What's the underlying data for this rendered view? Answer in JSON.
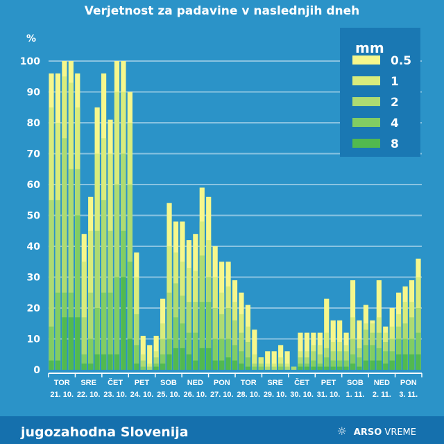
{
  "title": "Verjetnost za padavine v naslednjih dneh",
  "footer": {
    "region": "jugozahodna Slovenija",
    "brand_bold": "ARSO",
    "brand_light": "VREME",
    "brand_icon": "sun-snowflake-icon"
  },
  "colors": {
    "0.5": "#f6f78c",
    "1": "#d9ec7c",
    "2": "#aedb72",
    "4": "#82cd63",
    "8": "#52b94f",
    "background": "#2b93c8",
    "legend_bg": "#1a78b3"
  },
  "chart_data": {
    "type": "bar",
    "stacked": "overlapping-cumulative",
    "ylabel": "%",
    "ylim": [
      0,
      100
    ],
    "yticks": [
      0,
      10,
      20,
      30,
      40,
      50,
      60,
      70,
      80,
      90,
      100
    ],
    "grid": true,
    "legend": {
      "title": "mm",
      "placement": "top-right",
      "entries": [
        "0.5",
        "1",
        "2",
        "4",
        "8"
      ]
    },
    "days": [
      {
        "day": "TOR",
        "date": "21. 10."
      },
      {
        "day": "SRE",
        "date": "22. 10."
      },
      {
        "day": "ČET",
        "date": "23. 10."
      },
      {
        "day": "PET",
        "date": "24. 10."
      },
      {
        "day": "SOB",
        "date": "25. 10."
      },
      {
        "day": "NED",
        "date": "26. 10."
      },
      {
        "day": "PON",
        "date": "27. 10."
      },
      {
        "day": "TOR",
        "date": "28. 10."
      },
      {
        "day": "SRE",
        "date": "29. 10."
      },
      {
        "day": "ČET",
        "date": "30. 10."
      },
      {
        "day": "PET",
        "date": "31. 10."
      },
      {
        "day": "SOB",
        "date": "1. 11."
      },
      {
        "day": "NED",
        "date": "2. 11."
      },
      {
        "day": "PON",
        "date": "3. 11."
      }
    ],
    "series_keys": [
      "0.5",
      "1",
      "2",
      "4",
      "8"
    ],
    "bars": [
      [
        96,
        85,
        55,
        14,
        3
      ],
      [
        96,
        80,
        55,
        25,
        3
      ],
      [
        100,
        95,
        75,
        25,
        17
      ],
      [
        100,
        93,
        65,
        25,
        17
      ],
      [
        96,
        85,
        65,
        50,
        17
      ],
      [
        44,
        35,
        17,
        5,
        2
      ],
      [
        56,
        45,
        25,
        10,
        2
      ],
      [
        85,
        70,
        45,
        20,
        5
      ],
      [
        96,
        75,
        55,
        25,
        5
      ],
      [
        81,
        70,
        45,
        25,
        5
      ],
      [
        100,
        90,
        60,
        30,
        5
      ],
      [
        100,
        90,
        70,
        45,
        30
      ],
      [
        90,
        80,
        60,
        35,
        10
      ],
      [
        38,
        30,
        18,
        8,
        2
      ],
      [
        11,
        5,
        3,
        1,
        0
      ],
      [
        8,
        2,
        1,
        0,
        0
      ],
      [
        11,
        6,
        4,
        2,
        1
      ],
      [
        23,
        15,
        10,
        5,
        2
      ],
      [
        54,
        40,
        25,
        10,
        5
      ],
      [
        48,
        38,
        28,
        17,
        7
      ],
      [
        48,
        35,
        24,
        15,
        7
      ],
      [
        42,
        33,
        22,
        12,
        5
      ],
      [
        44,
        32,
        22,
        12,
        3
      ],
      [
        59,
        48,
        37,
        22,
        7
      ],
      [
        56,
        42,
        30,
        22,
        7
      ],
      [
        40,
        30,
        20,
        10,
        3
      ],
      [
        35,
        25,
        18,
        10,
        3
      ],
      [
        35,
        27,
        20,
        10,
        4
      ],
      [
        29,
        22,
        16,
        8,
        3
      ],
      [
        25,
        18,
        12,
        6,
        2
      ],
      [
        21,
        14,
        9,
        4,
        1
      ],
      [
        13,
        5,
        2,
        1,
        0
      ],
      [
        4,
        4,
        2,
        1,
        0
      ],
      [
        6,
        2,
        1,
        0,
        0
      ],
      [
        6,
        2,
        1,
        0,
        0
      ],
      [
        8,
        4,
        2,
        1,
        0
      ],
      [
        6,
        2,
        1,
        0,
        0
      ],
      [
        1,
        1,
        1,
        0,
        0
      ],
      [
        12,
        6,
        4,
        2,
        1
      ],
      [
        12,
        6,
        4,
        2,
        1
      ],
      [
        12,
        8,
        6,
        3,
        1
      ],
      [
        12,
        8,
        5,
        2,
        1
      ],
      [
        23,
        12,
        7,
        4,
        1
      ],
      [
        16,
        9,
        6,
        3,
        1
      ],
      [
        16,
        9,
        6,
        3,
        1
      ],
      [
        12,
        8,
        6,
        3,
        1
      ],
      [
        29,
        17,
        10,
        5,
        2
      ],
      [
        16,
        10,
        7,
        4,
        1
      ],
      [
        21,
        15,
        13,
        8,
        3
      ],
      [
        16,
        15,
        12,
        8,
        3
      ],
      [
        29,
        17,
        12,
        7,
        3
      ],
      [
        14,
        12,
        9,
        6,
        2
      ],
      [
        20,
        14,
        10,
        6,
        3
      ],
      [
        25,
        18,
        14,
        10,
        5
      ],
      [
        27,
        22,
        15,
        10,
        5
      ],
      [
        29,
        22,
        17,
        10,
        5
      ],
      [
        36,
        30,
        20,
        12,
        5
      ]
    ]
  }
}
